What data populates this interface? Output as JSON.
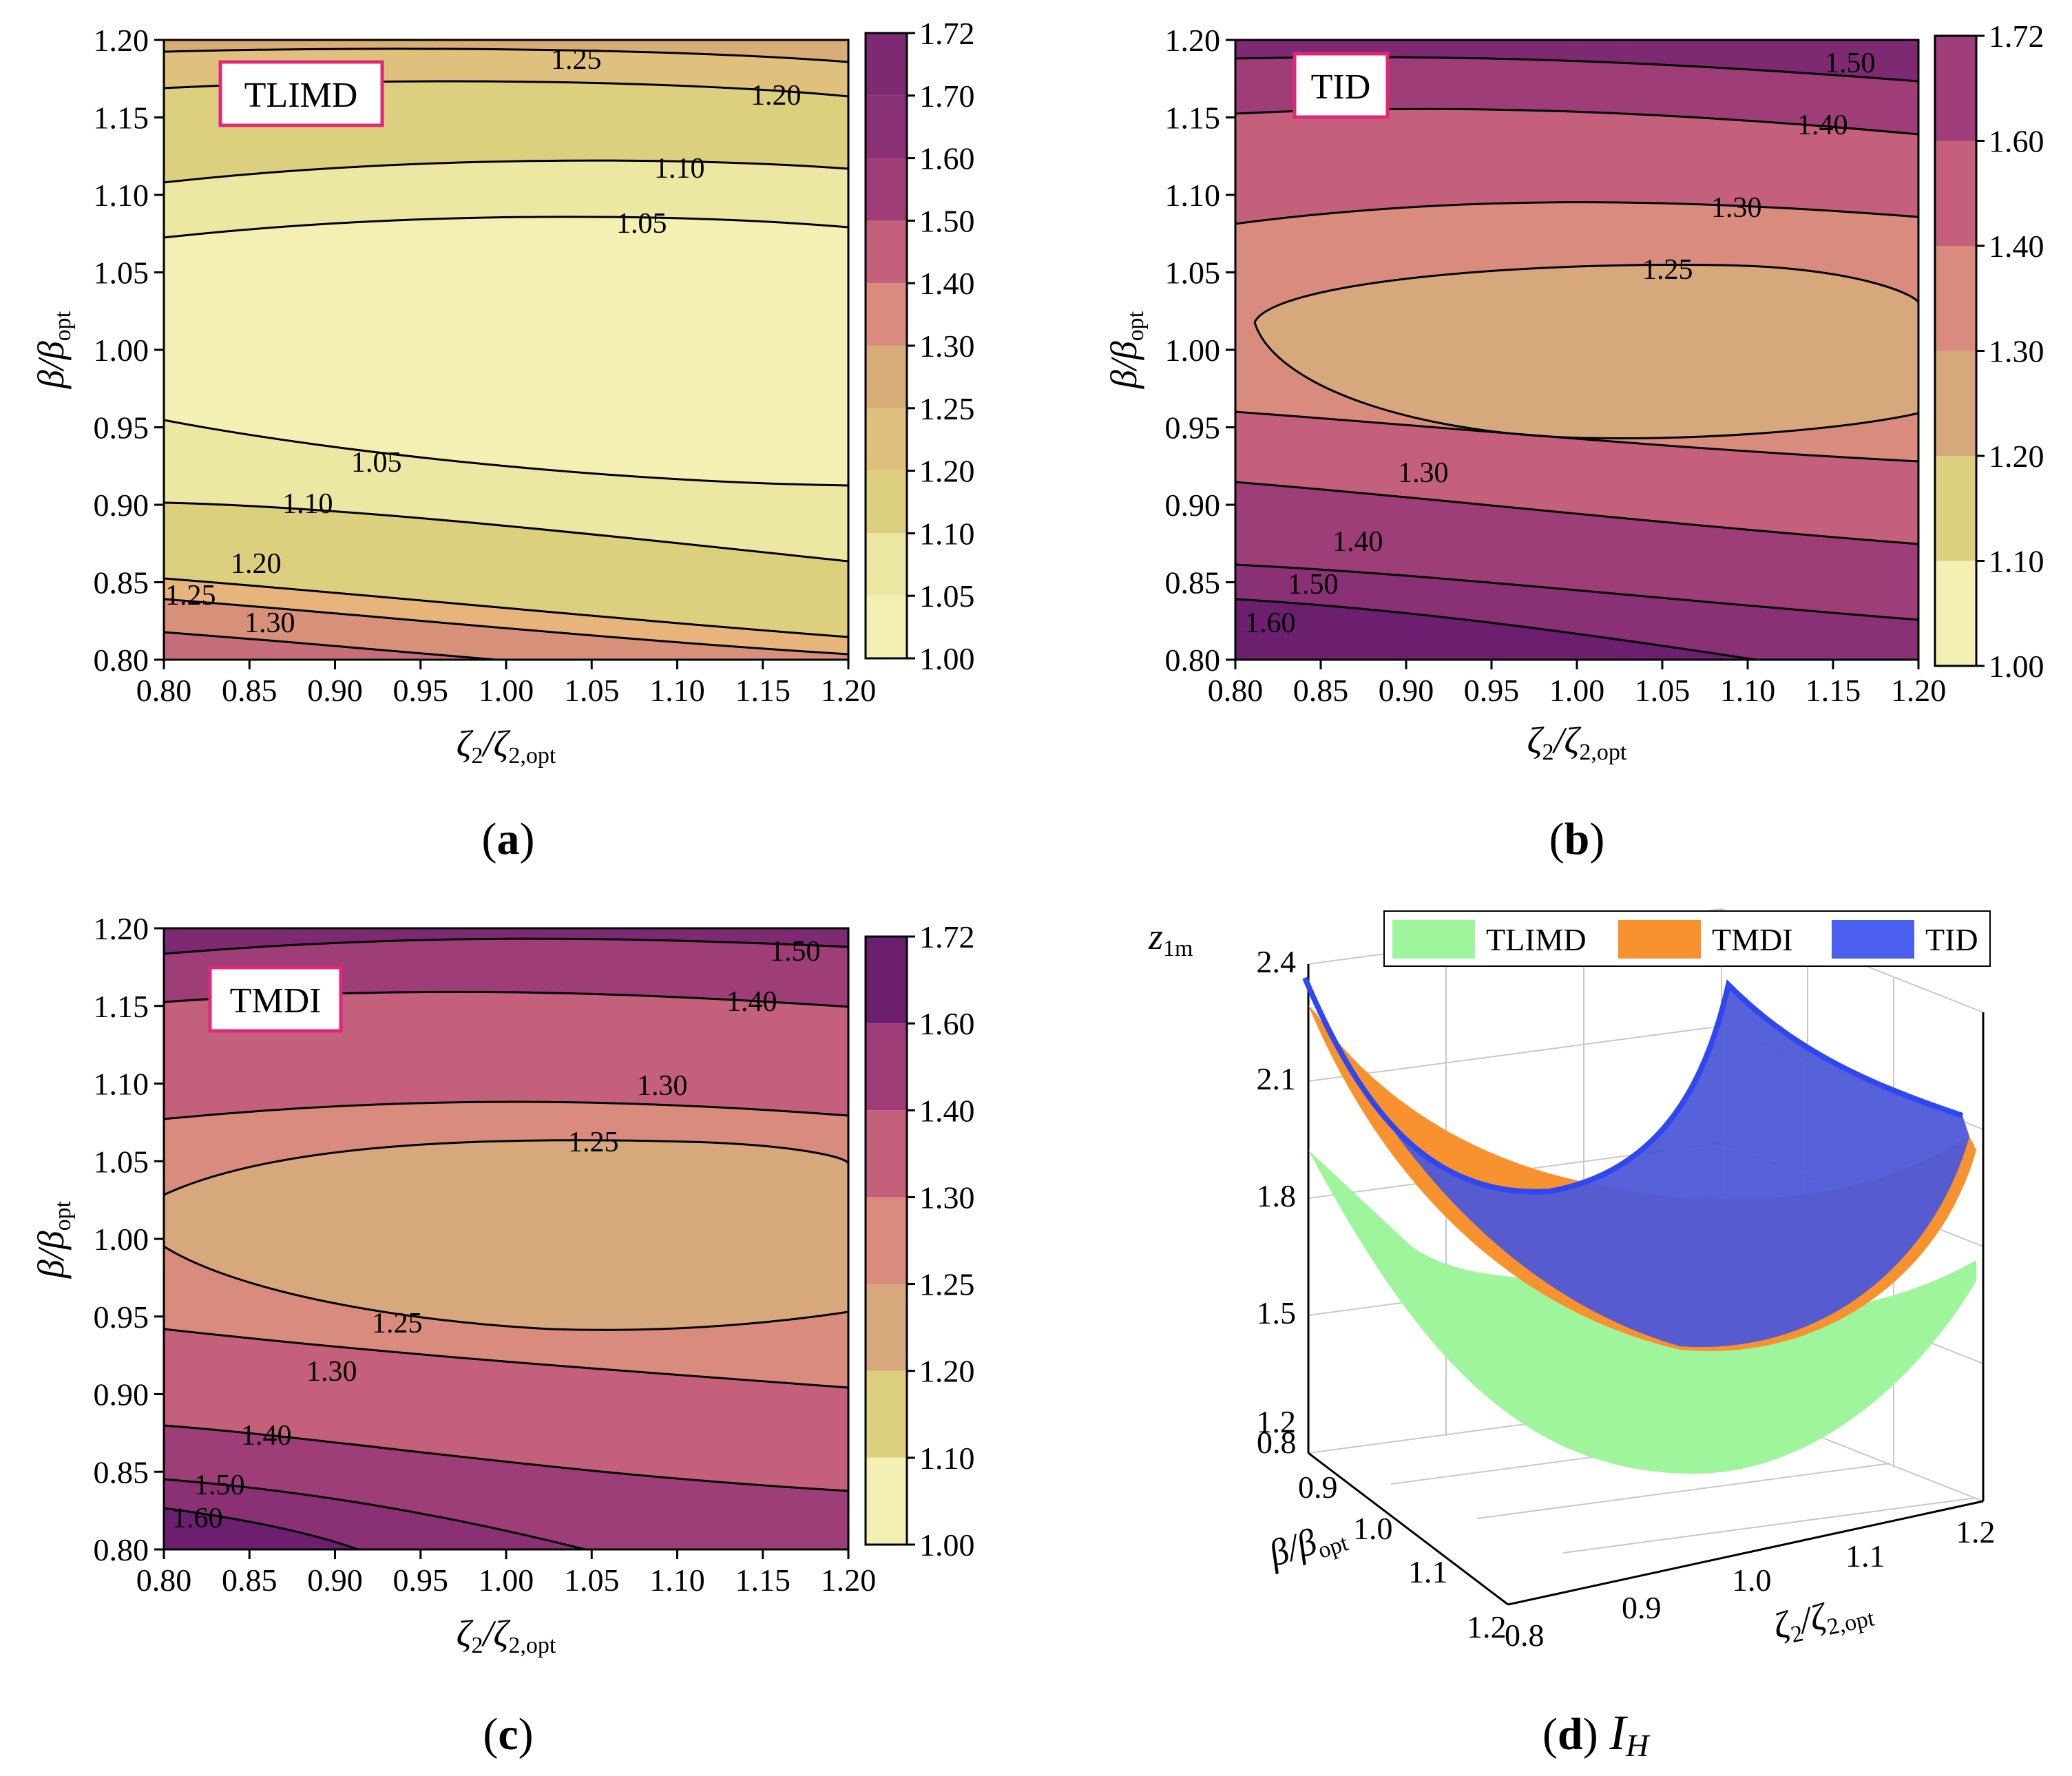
{
  "panels": [
    {
      "id": "a",
      "caption_letter": "a",
      "tag": "TLIMD",
      "colorbar": [
        "1.00",
        "1.05",
        "1.10",
        "1.20",
        "1.25",
        "1.30",
        "1.40",
        "1.50",
        "1.60",
        "1.70",
        "1.72"
      ],
      "contour_labels": [
        "1.25",
        "1.20",
        "1.10",
        "1.05",
        "1.05",
        "1.10",
        "1.20",
        "1.25",
        "1.30"
      ]
    },
    {
      "id": "b",
      "caption_letter": "b",
      "tag": "TID",
      "colorbar": [
        "1.00",
        "1.10",
        "1.20",
        "1.30",
        "1.40",
        "1.60",
        "1.72"
      ],
      "contour_labels": [
        "1.50",
        "1.40",
        "1.30",
        "1.25",
        "1.30",
        "1.40",
        "1.50",
        "1.60"
      ]
    },
    {
      "id": "c",
      "caption_letter": "c",
      "tag": "TMDI",
      "colorbar": [
        "1.00",
        "1.10",
        "1.20",
        "1.25",
        "1.30",
        "1.40",
        "1.60",
        "1.72"
      ],
      "contour_labels": [
        "1.50",
        "1.40",
        "1.30",
        "1.25",
        "1.25",
        "1.30",
        "1.40",
        "1.50",
        "1.60"
      ]
    }
  ],
  "contour_axes": {
    "xticks": [
      "0.80",
      "0.85",
      "0.90",
      "0.95",
      "1.00",
      "1.05",
      "1.10",
      "1.15",
      "1.20"
    ],
    "yticks": [
      "1.20",
      "1.15",
      "1.10",
      "1.05",
      "1.00",
      "0.95",
      "0.90",
      "0.85",
      "0.80"
    ],
    "xlabel": {
      "main": "ζ",
      "sub": "2",
      "slash": "/ζ",
      "sub2": "2,opt"
    },
    "ylabel": {
      "main": "β/β",
      "sub": "opt"
    }
  },
  "surface": {
    "caption_letter": "d",
    "caption_suffix": "I",
    "caption_sub": "H",
    "zlabel": {
      "main": "z",
      "sub": "1m"
    },
    "zticks": [
      "2.4",
      "2.1",
      "1.8",
      "1.5",
      "1.2"
    ],
    "beta_ticks": [
      "0.8",
      "0.9",
      "1.0",
      "1.1",
      "1.2"
    ],
    "zeta_ticks": [
      "0.8",
      "0.9",
      "1.0",
      "1.1",
      "1.2"
    ],
    "legend": [
      {
        "name": "TLIMD",
        "color": "#9ef59c"
      },
      {
        "name": "TMDI",
        "color": "#f7922e"
      },
      {
        "name": "TID",
        "color": "#4a5ef0"
      }
    ]
  },
  "chart_data": [
    {
      "type": "heatmap",
      "panel": "a",
      "x_range": [
        0.8,
        1.2
      ],
      "y_range": [
        0.8,
        1.2
      ],
      "colorbar_range": [
        1.0,
        1.72
      ],
      "min_value": 1.0,
      "min_location": {
        "x": 1.0,
        "y": 1.0
      },
      "contour_levels": [
        1.05,
        1.1,
        1.2,
        1.25,
        1.3
      ]
    },
    {
      "type": "heatmap",
      "panel": "b",
      "x_range": [
        0.8,
        1.2
      ],
      "y_range": [
        0.8,
        1.2
      ],
      "colorbar_range": [
        1.0,
        1.72
      ],
      "min_value": 1.2,
      "contour_levels": [
        1.25,
        1.3,
        1.4,
        1.5,
        1.6
      ]
    },
    {
      "type": "heatmap",
      "panel": "c",
      "x_range": [
        0.8,
        1.2
      ],
      "y_range": [
        0.8,
        1.2
      ],
      "colorbar_range": [
        1.0,
        1.72
      ],
      "min_value": 1.2,
      "contour_levels": [
        1.25,
        1.3,
        1.4,
        1.5,
        1.6
      ]
    },
    {
      "type": "surface",
      "panel": "d",
      "x_range": [
        0.8,
        1.2
      ],
      "y_range": [
        0.8,
        1.2
      ],
      "z_range": [
        1.2,
        2.4
      ],
      "series": [
        {
          "name": "TLIMD",
          "min_z": 1.33,
          "max_z": 1.92
        },
        {
          "name": "TMDI",
          "min_z": 1.6,
          "max_z": 2.34
        },
        {
          "name": "TID",
          "min_z": 1.61,
          "max_z": 2.38
        }
      ]
    }
  ]
}
